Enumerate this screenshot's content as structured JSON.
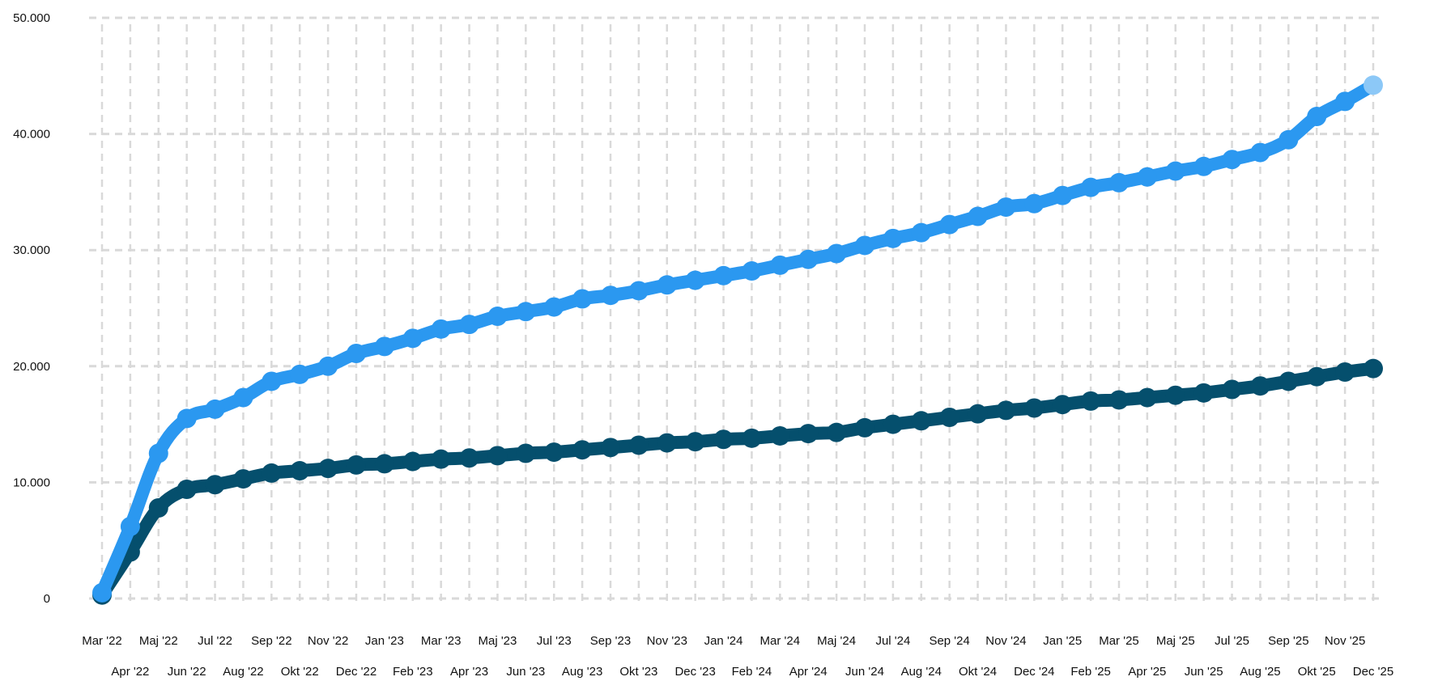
{
  "chart_data": {
    "type": "line",
    "title": "",
    "xlabel": "",
    "ylabel": "",
    "grid": true,
    "legend": "none",
    "ylim": [
      0,
      50000
    ],
    "yticks": [
      0,
      10000,
      20000,
      30000,
      40000,
      50000
    ],
    "ytick_labels": [
      "0",
      "10.000",
      "20.000",
      "30.000",
      "40.000",
      "50.000"
    ],
    "x_tick_labels": [
      "Mar '22",
      "Apr '22",
      "Maj '22",
      "Jun '22",
      "Jul '22",
      "Aug '22",
      "Sep '22",
      "Okt '22",
      "Nov '22",
      "Dec '22",
      "Jan '23",
      "Feb '23",
      "Mar '23",
      "Apr '23",
      "Maj '23",
      "Jun '23",
      "Jul '23",
      "Aug '23",
      "Sep '23",
      "Okt '23",
      "Nov '23",
      "Dec '23",
      "Jan '24",
      "Feb '24",
      "Mar '24",
      "Apr '24",
      "Maj '24",
      "Jun '24",
      "Jul '24",
      "Aug '24",
      "Sep '24",
      "Okt '24",
      "Nov '24",
      "Dec '24",
      "Jan '25",
      "Feb '25",
      "Mar '25",
      "Apr '25",
      "Maj '25",
      "Jun '25",
      "Jul '25",
      "Aug '25",
      "Sep '25",
      "Okt '25",
      "Nov '25",
      "Dec '25"
    ],
    "series": [
      {
        "color": "#2b98f0",
        "values": [
          500,
          6200,
          12500,
          15500,
          16300,
          17300,
          18700,
          19300,
          20000,
          21100,
          21700,
          22400,
          23200,
          23600,
          24300,
          24700,
          25100,
          25800,
          26100,
          26500,
          27000,
          27400,
          27800,
          28200,
          28700,
          29200,
          29700,
          30400,
          31000,
          31500,
          32200,
          32900,
          33700,
          34000,
          34700,
          35400,
          35800,
          36300,
          36800,
          37200,
          37800,
          38400,
          39500,
          41500,
          42800,
          44200
        ]
      },
      {
        "color": "#054f6d",
        "values": [
          300,
          4000,
          7800,
          9400,
          9800,
          10300,
          10800,
          11000,
          11200,
          11500,
          11600,
          11800,
          12000,
          12100,
          12300,
          12500,
          12600,
          12800,
          13000,
          13200,
          13400,
          13500,
          13700,
          13800,
          14000,
          14200,
          14300,
          14700,
          15000,
          15300,
          15600,
          15900,
          16200,
          16400,
          16700,
          17000,
          17100,
          17300,
          17500,
          17700,
          18000,
          18300,
          18700,
          19100,
          19500,
          19800
        ]
      }
    ]
  }
}
